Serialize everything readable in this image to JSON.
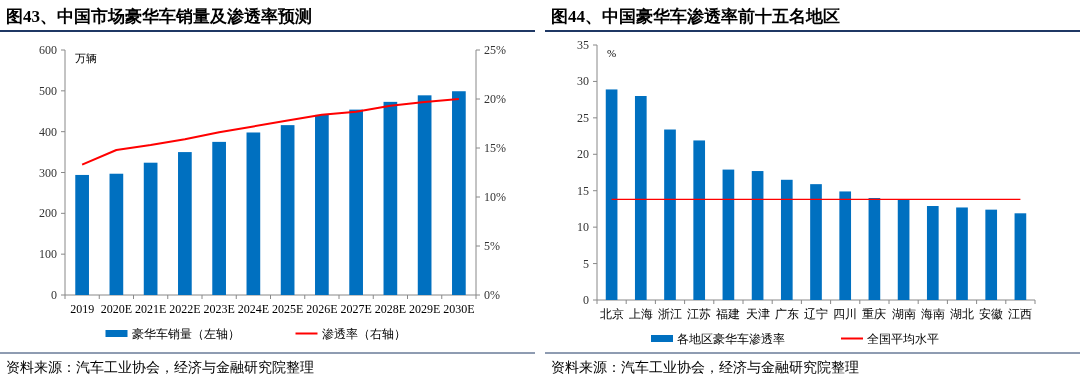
{
  "chart_data": [
    {
      "type": "bar",
      "title": "图43、中国市场豪华车销量及渗透率预测",
      "ylabel": "万辆",
      "categories": [
        "2019",
        "2020E",
        "2021E",
        "2022E",
        "2023E",
        "2024E",
        "2025E",
        "2026E",
        "2027E",
        "2028E",
        "2029E",
        "2030E"
      ],
      "series": [
        {
          "name": "豪华车销量（左轴）",
          "color": "#0070c0",
          "values": [
            294,
            297,
            324,
            350,
            375,
            398,
            416,
            441,
            454,
            473,
            489,
            499
          ]
        },
        {
          "name": "渗透率（右轴）",
          "type": "line",
          "axis": "y2",
          "color": "#ff0000",
          "values": [
            13.3,
            14.8,
            15.3,
            15.9,
            16.6,
            17.2,
            17.8,
            18.4,
            18.7,
            19.3,
            19.7,
            20.0
          ]
        }
      ],
      "ylim": [
        0,
        600
      ],
      "yticks": [
        0,
        100,
        200,
        300,
        400,
        500,
        600
      ],
      "y2lim": [
        0,
        25
      ],
      "y2ticks": [
        {
          "value": 0,
          "label": "0%"
        },
        {
          "value": 5,
          "label": "5%"
        },
        {
          "value": 10,
          "label": "10%"
        },
        {
          "value": 15,
          "label": "15%"
        },
        {
          "value": 20,
          "label": "20%"
        },
        {
          "value": 25,
          "label": "25%"
        }
      ],
      "legend": "bottom",
      "annotations": [
        "资料来源：汽车工业协会，经济与金融研究院整理"
      ]
    },
    {
      "type": "bar",
      "title": "图44、中国豪华车渗透率前十五名地区",
      "ylabel": "%",
      "categories": [
        "北京",
        "上海",
        "浙江",
        "江苏",
        "福建",
        "天津",
        "广东",
        "辽宁",
        "四川",
        "重庆",
        "湖南",
        "海南",
        "湖北",
        "安徽",
        "江西"
      ],
      "series": [
        {
          "name": "各地区豪华车渗透率",
          "color": "#0070c0",
          "values": [
            28.9,
            28.0,
            23.4,
            21.9,
            17.9,
            17.7,
            16.5,
            15.9,
            14.9,
            14.0,
            13.8,
            12.9,
            12.7,
            12.4,
            11.9
          ]
        }
      ],
      "ylim": [
        0,
        35
      ],
      "yticks": [
        0,
        5,
        10,
        15,
        20,
        25,
        30,
        35
      ],
      "ref_lines": [
        {
          "axis": "y",
          "value": 13.8,
          "label": "全国平均水平",
          "color": "#ff0000"
        }
      ],
      "legend": "bottom",
      "annotations": [
        "资料来源：汽车工业协会，经济与金融研究院整理"
      ]
    }
  ]
}
